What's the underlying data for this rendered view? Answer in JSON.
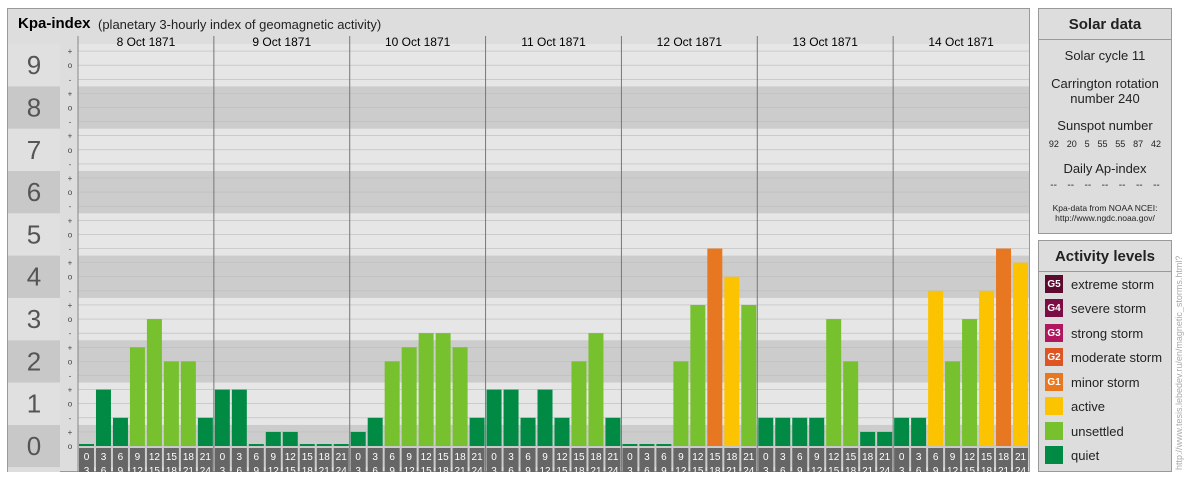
{
  "header": {
    "title": "Kpa-index",
    "subtitle": "(planetary 3-hourly index of geomagnetic activity)"
  },
  "solar_panel": {
    "title": "Solar data",
    "solar_cycle": "Solar cycle 11",
    "carrington_line1": "Carrington rotation",
    "carrington_line2": "number 240",
    "sunspot_label": "Sunspot number",
    "sunspot_numbers": [
      "92",
      "20",
      "5",
      "55",
      "55",
      "87",
      "42"
    ],
    "ap_label": "Daily Ap-index",
    "ap_values": [
      "--",
      "--",
      "--",
      "--",
      "--",
      "--",
      "--"
    ],
    "source_line1": "Kpa-data from NOAA NCEI:",
    "source_line2": "http://www.ngdc.noaa.gov/"
  },
  "activity_panel": {
    "title": "Activity levels",
    "levels": [
      {
        "badge": "G5",
        "label": "extreme storm",
        "color": "#5c0a2e"
      },
      {
        "badge": "G4",
        "label": "severe storm",
        "color": "#7a0e45"
      },
      {
        "badge": "G3",
        "label": "strong storm",
        "color": "#b0175f"
      },
      {
        "badge": "G2",
        "label": "moderate storm",
        "color": "#dd5522"
      },
      {
        "badge": "G1",
        "label": "minor storm",
        "color": "#e87722"
      },
      {
        "badge": "",
        "label": "active",
        "color": "#fcc400"
      },
      {
        "badge": "",
        "label": "unsettled",
        "color": "#77c12e"
      },
      {
        "badge": "",
        "label": "quiet",
        "color": "#008a44"
      }
    ]
  },
  "watermark": "http://www.tesis.lebedev.ru/en/magnetic_storms.html?",
  "chart_data": {
    "type": "bar",
    "ylim": [
      0,
      9
    ],
    "y_major_ticks": [
      "0",
      "1",
      "2",
      "3",
      "4",
      "5",
      "6",
      "7",
      "8",
      "9"
    ],
    "y_minor_ticks": [
      "o",
      "+",
      "-"
    ],
    "interval_start_labels": [
      "0",
      "3",
      "6",
      "9",
      "12",
      "15",
      "18",
      "21"
    ],
    "interval_end_labels": [
      "3",
      "6",
      "9",
      "12",
      "15",
      "18",
      "21",
      "24"
    ],
    "days": [
      {
        "date": "8 Oct 1871",
        "values": [
          0,
          1.333,
          0.667,
          2.333,
          3,
          2,
          2,
          0.667
        ],
        "levels": [
          "quiet",
          "quiet",
          "quiet",
          "unsettled",
          "unsettled",
          "unsettled",
          "unsettled",
          "quiet"
        ]
      },
      {
        "date": "9 Oct 1871",
        "values": [
          1.333,
          1.333,
          0,
          0.333,
          0.333,
          0,
          0,
          0
        ],
        "levels": [
          "quiet",
          "quiet",
          "quiet",
          "quiet",
          "quiet",
          "quiet",
          "quiet",
          "quiet"
        ]
      },
      {
        "date": "10 Oct 1871",
        "values": [
          0.333,
          0.667,
          2,
          2.333,
          2.667,
          2.667,
          2.333,
          0.667
        ],
        "levels": [
          "quiet",
          "quiet",
          "unsettled",
          "unsettled",
          "unsettled",
          "unsettled",
          "unsettled",
          "quiet"
        ]
      },
      {
        "date": "11 Oct 1871",
        "values": [
          1.333,
          1.333,
          0.667,
          1.333,
          0.667,
          2,
          2.667,
          0.667
        ],
        "levels": [
          "quiet",
          "quiet",
          "quiet",
          "quiet",
          "quiet",
          "unsettled",
          "unsettled",
          "quiet"
        ]
      },
      {
        "date": "12 Oct 1871",
        "values": [
          0,
          0,
          0,
          2,
          3.333,
          4.667,
          4,
          3.333
        ],
        "levels": [
          "quiet",
          "quiet",
          "quiet",
          "unsettled",
          "unsettled",
          "minor storm",
          "active",
          "unsettled"
        ]
      },
      {
        "date": "13 Oct 1871",
        "values": [
          0.667,
          0.667,
          0.667,
          0.667,
          3,
          2,
          0.333,
          0.333
        ],
        "levels": [
          "quiet",
          "quiet",
          "quiet",
          "quiet",
          "unsettled",
          "unsettled",
          "quiet",
          "quiet"
        ]
      },
      {
        "date": "14 Oct 1871",
        "values": [
          0.667,
          0.667,
          3.667,
          2,
          3,
          3.667,
          4.667,
          4.333
        ],
        "levels": [
          "quiet",
          "quiet",
          "active",
          "unsettled",
          "unsettled",
          "active",
          "minor storm",
          "active"
        ]
      }
    ]
  }
}
